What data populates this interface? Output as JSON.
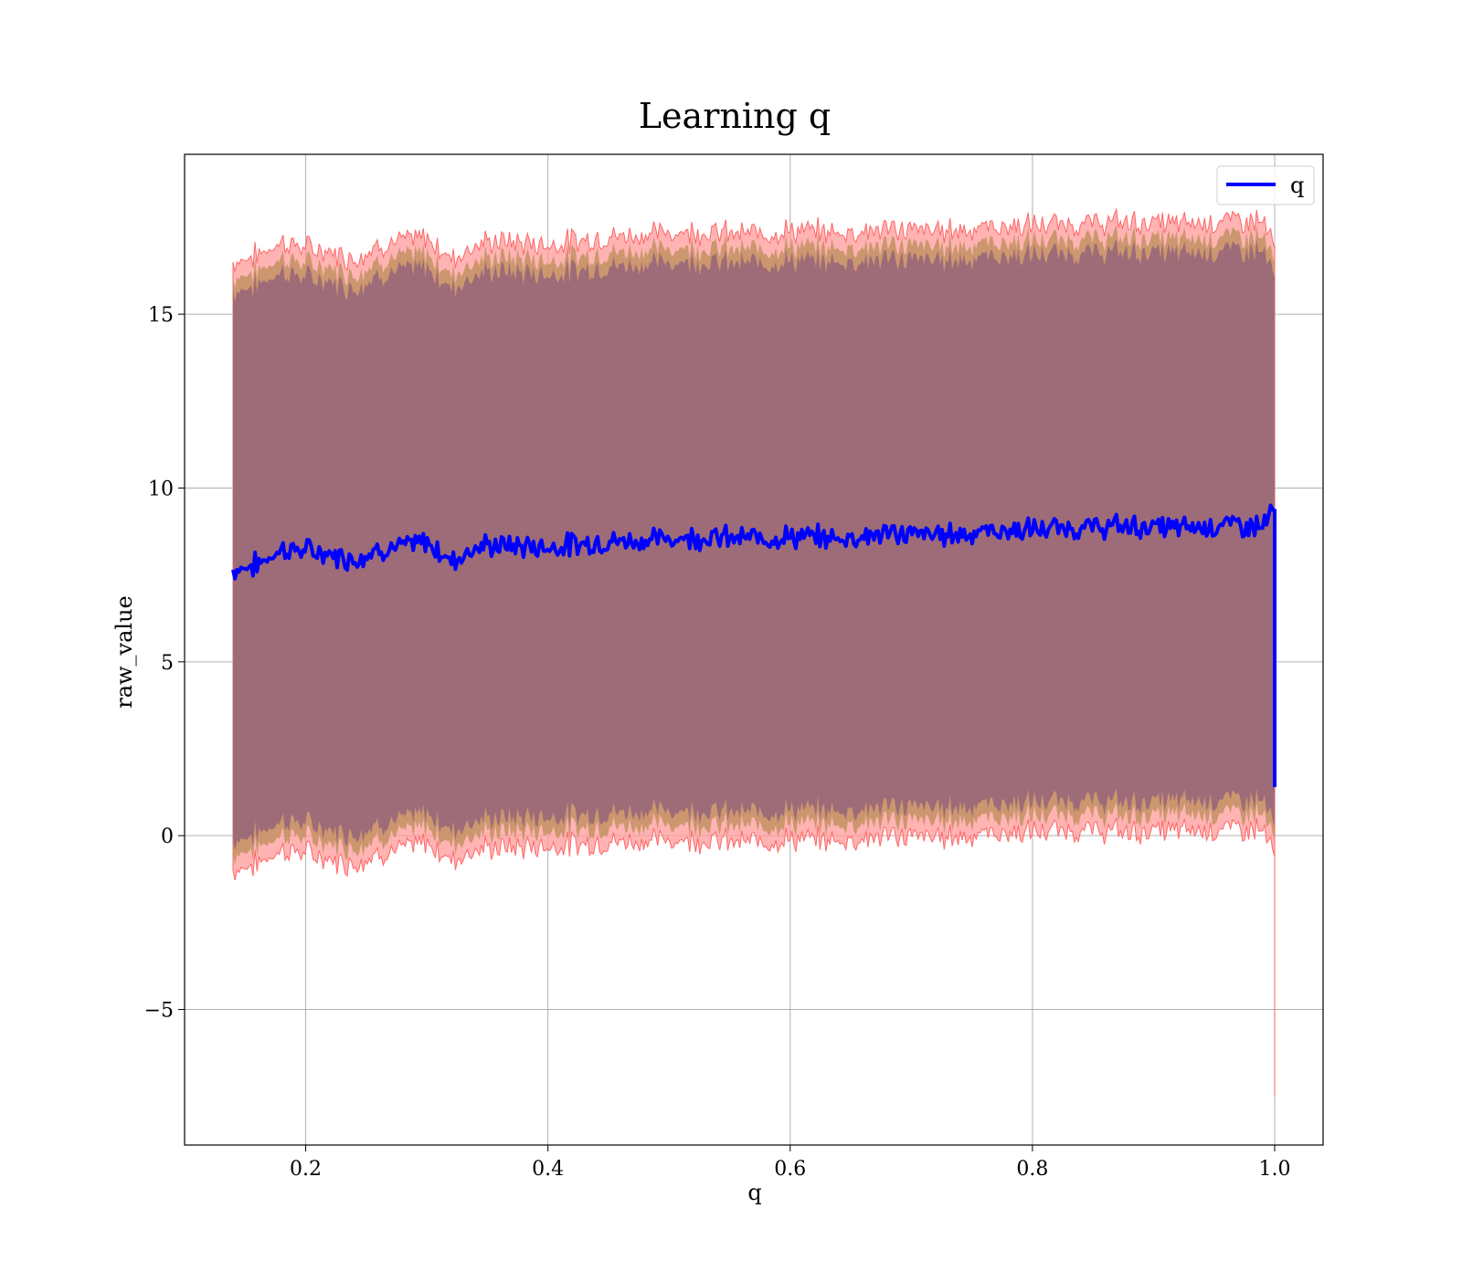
{
  "chart_data": {
    "type": "line",
    "title": "Learning q",
    "xlabel": "q",
    "ylabel": "raw_value",
    "xlim": [
      0.1,
      1.04
    ],
    "ylim": [
      -8.9,
      19.6
    ],
    "grid": true,
    "legend": {
      "placement": "top-right",
      "entries": [
        "q"
      ]
    },
    "x_ticks": [
      0.2,
      0.4,
      0.6,
      0.8,
      1.0
    ],
    "x_tick_labels": [
      "0.2",
      "0.4",
      "0.6",
      "0.8",
      "1.0"
    ],
    "y_ticks": [
      -5,
      0,
      5,
      10,
      15
    ],
    "y_tick_labels": [
      "−5",
      "0",
      "5",
      "10",
      "15"
    ],
    "colors": {
      "line": "#0000ff",
      "band_outer": "#ff9999",
      "band_middle": "#c79466",
      "band_inner": "#9e6c78"
    },
    "series": [
      {
        "name": "q",
        "x": [
          0.14,
          0.16,
          0.18,
          0.2,
          0.22,
          0.24,
          0.26,
          0.28,
          0.3,
          0.32,
          0.34,
          0.36,
          0.4,
          0.44,
          0.48,
          0.52,
          0.56,
          0.6,
          0.64,
          0.68,
          0.72,
          0.76,
          0.8,
          0.84,
          0.88,
          0.92,
          0.96,
          0.99,
          1.0
        ],
        "y": [
          7.65,
          7.8,
          8.25,
          8.2,
          8.1,
          7.95,
          8.25,
          8.3,
          8.45,
          7.9,
          8.3,
          8.35,
          8.3,
          8.45,
          8.5,
          8.6,
          8.55,
          8.6,
          8.55,
          8.7,
          8.65,
          8.75,
          8.8,
          8.85,
          8.9,
          8.85,
          8.95,
          8.9,
          9.4
        ],
        "lower": [
          -1.0,
          -0.8,
          -0.4,
          -0.5,
          -0.7,
          -0.8,
          -0.5,
          -0.4,
          -0.2,
          -0.7,
          -0.4,
          -0.35,
          -0.3,
          -0.2,
          -0.15,
          -0.1,
          -0.2,
          -0.1,
          -0.15,
          0.0,
          -0.05,
          0.05,
          0.1,
          0.15,
          0.1,
          0.15,
          0.2,
          0.2,
          -0.6
        ],
        "upper": [
          16.5,
          16.7,
          17.1,
          16.9,
          16.8,
          16.6,
          17.0,
          17.1,
          17.2,
          16.6,
          17.0,
          17.1,
          17.0,
          17.2,
          17.3,
          17.4,
          17.3,
          17.4,
          17.35,
          17.45,
          17.4,
          17.5,
          17.55,
          17.6,
          17.65,
          17.6,
          17.7,
          17.7,
          16.9
        ]
      }
    ],
    "final_drop": {
      "x": 1.0,
      "line_bottom": 1.4,
      "band_bottom": -7.5
    }
  }
}
